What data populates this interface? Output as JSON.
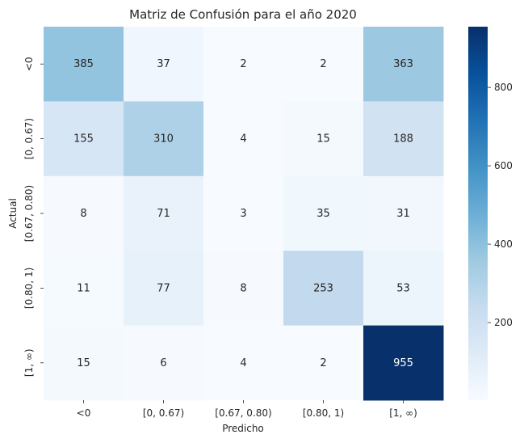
{
  "chart_data": {
    "type": "heatmap",
    "title": "Matriz de Confusión para el año 2020",
    "xlabel": "Predicho",
    "ylabel": "Actual",
    "x_categories": [
      "<0",
      "[0, 0.67)",
      "[0.67, 0.80)",
      "[0.80, 1)",
      "[1, ∞)"
    ],
    "y_categories": [
      "<0",
      "[0, 0.67)",
      "[0.67, 0.80)",
      "[0.80, 1)",
      "[1, ∞)"
    ],
    "values": [
      [
        385,
        37,
        2,
        2,
        363
      ],
      [
        155,
        310,
        4,
        15,
        188
      ],
      [
        8,
        71,
        3,
        35,
        31
      ],
      [
        11,
        77,
        8,
        253,
        53
      ],
      [
        15,
        6,
        4,
        2,
        955
      ]
    ],
    "colormap": "Blues",
    "color_range": [
      2,
      955
    ],
    "colorbar_ticks": [
      200,
      400,
      600,
      800
    ],
    "colorbar_tick_labels": [
      "200",
      "400",
      "600",
      "800"
    ]
  }
}
